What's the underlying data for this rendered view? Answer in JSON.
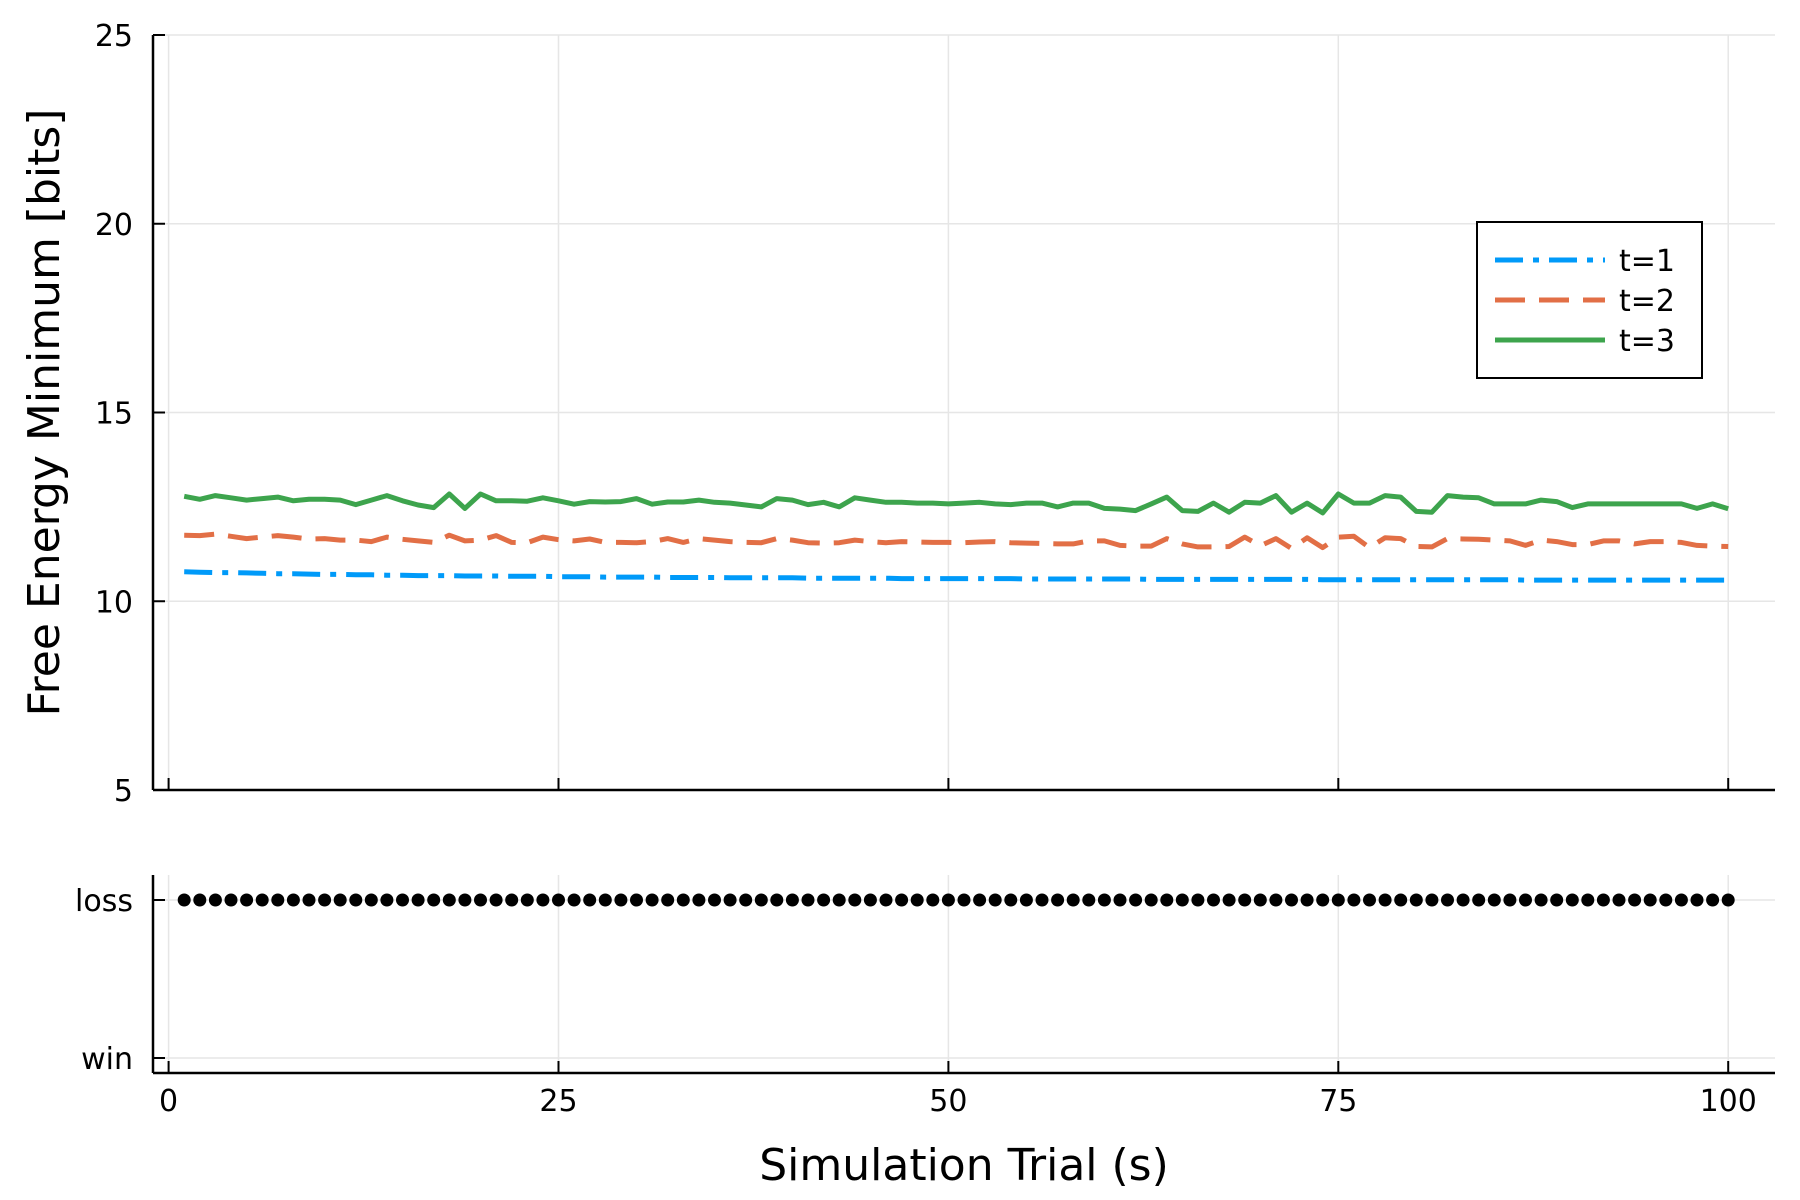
{
  "chart_data": [
    {
      "type": "line",
      "title": "",
      "xlabel": "",
      "ylabel": "Free Energy Minimum [bits]",
      "xlim": [
        -1,
        103
      ],
      "ylim": [
        5,
        25
      ],
      "xticks": [
        0,
        25,
        50,
        75,
        100
      ],
      "yticks": [
        5,
        10,
        15,
        20,
        25
      ],
      "ytick_labels": [
        "5",
        "10",
        "15",
        "20",
        "25"
      ],
      "grid": true,
      "legend": "right, upper-middle",
      "colors": {
        "t1": "#009AF9",
        "t2": "#E26F46",
        "t3": "#3DA44D"
      },
      "series": [
        {
          "name": "t=1",
          "style": "dashdot",
          "color": "#009AF9",
          "x_start": 1,
          "x_end": 100,
          "values": [
            10.78,
            10.77,
            10.76,
            10.76,
            10.75,
            10.74,
            10.73,
            10.73,
            10.72,
            10.71,
            10.71,
            10.7,
            10.7,
            10.69,
            10.69,
            10.68,
            10.68,
            10.68,
            10.67,
            10.67,
            10.67,
            10.66,
            10.66,
            10.66,
            10.65,
            10.65,
            10.65,
            10.64,
            10.64,
            10.64,
            10.64,
            10.63,
            10.63,
            10.63,
            10.63,
            10.62,
            10.62,
            10.62,
            10.62,
            10.62,
            10.61,
            10.61,
            10.61,
            10.61,
            10.61,
            10.61,
            10.6,
            10.6,
            10.6,
            10.6,
            10.6,
            10.6,
            10.6,
            10.6,
            10.59,
            10.59,
            10.59,
            10.59,
            10.59,
            10.59,
            10.59,
            10.59,
            10.58,
            10.58,
            10.58,
            10.58,
            10.58,
            10.58,
            10.58,
            10.58,
            10.58,
            10.58,
            10.58,
            10.57,
            10.57,
            10.57,
            10.57,
            10.57,
            10.57,
            10.57,
            10.57,
            10.57,
            10.57,
            10.57,
            10.57,
            10.57,
            10.56,
            10.56,
            10.56,
            10.56,
            10.56,
            10.56,
            10.56,
            10.56,
            10.56,
            10.56,
            10.56,
            10.56,
            10.56,
            10.56
          ]
        },
        {
          "name": "t=2",
          "style": "dash",
          "color": "#E26F46",
          "x_start": 1,
          "x_end": 100,
          "values": [
            11.75,
            11.74,
            11.78,
            11.72,
            11.66,
            11.7,
            11.74,
            11.7,
            11.65,
            11.66,
            11.62,
            11.62,
            11.58,
            11.7,
            11.64,
            11.6,
            11.56,
            11.75,
            11.6,
            11.62,
            11.74,
            11.56,
            11.55,
            11.7,
            11.63,
            11.6,
            11.65,
            11.56,
            11.56,
            11.55,
            11.58,
            11.66,
            11.56,
            11.66,
            11.62,
            11.58,
            11.56,
            11.55,
            11.66,
            11.62,
            11.55,
            11.54,
            11.55,
            11.62,
            11.58,
            11.55,
            11.58,
            11.57,
            11.56,
            11.56,
            11.55,
            11.57,
            11.58,
            11.55,
            11.54,
            11.53,
            11.52,
            11.52,
            11.6,
            11.6,
            11.48,
            11.46,
            11.46,
            11.66,
            11.52,
            11.44,
            11.44,
            11.45,
            11.7,
            11.47,
            11.66,
            11.4,
            11.68,
            11.42,
            11.7,
            11.72,
            11.42,
            11.68,
            11.66,
            11.45,
            11.44,
            11.66,
            11.65,
            11.64,
            11.62,
            11.6,
            11.48,
            11.62,
            11.58,
            11.5,
            11.5,
            11.6,
            11.6,
            11.52,
            11.58,
            11.58,
            11.56,
            11.48,
            11.46,
            11.45
          ]
        },
        {
          "name": "t=3",
          "style": "solid",
          "color": "#3DA44D",
          "x_start": 1,
          "x_end": 100,
          "values": [
            12.78,
            12.7,
            12.8,
            12.74,
            12.68,
            12.72,
            12.76,
            12.66,
            12.7,
            12.7,
            12.68,
            12.56,
            12.68,
            12.8,
            12.66,
            12.55,
            12.48,
            12.84,
            12.46,
            12.84,
            12.66,
            12.66,
            12.65,
            12.74,
            12.66,
            12.57,
            12.64,
            12.63,
            12.64,
            12.72,
            12.57,
            12.63,
            12.63,
            12.68,
            12.62,
            12.6,
            12.55,
            12.5,
            12.72,
            12.68,
            12.56,
            12.62,
            12.5,
            12.74,
            12.68,
            12.62,
            12.62,
            12.6,
            12.6,
            12.58,
            12.6,
            12.62,
            12.58,
            12.56,
            12.6,
            12.6,
            12.5,
            12.6,
            12.6,
            12.46,
            12.44,
            12.4,
            12.58,
            12.76,
            12.4,
            12.38,
            12.6,
            12.36,
            12.62,
            12.6,
            12.8,
            12.36,
            12.6,
            12.34,
            12.84,
            12.6,
            12.6,
            12.8,
            12.76,
            12.38,
            12.36,
            12.8,
            12.76,
            12.74,
            12.58,
            12.58,
            12.58,
            12.68,
            12.64,
            12.48,
            12.58,
            12.58,
            12.58,
            12.58,
            12.58,
            12.58,
            12.58,
            12.46,
            12.58,
            12.45
          ]
        }
      ]
    },
    {
      "type": "scatter",
      "title": "",
      "xlabel": "Simulation Trial (s)",
      "ylabel": "",
      "xlim": [
        -1,
        103
      ],
      "xticks": [
        0,
        25,
        50,
        75,
        100
      ],
      "xtick_labels": [
        "0",
        "25",
        "50",
        "75",
        "100"
      ],
      "y_categories": [
        "win",
        "loss"
      ],
      "grid": true,
      "color": "#000000",
      "x_start": 1,
      "x_end": 100,
      "outcome": "loss"
    }
  ]
}
